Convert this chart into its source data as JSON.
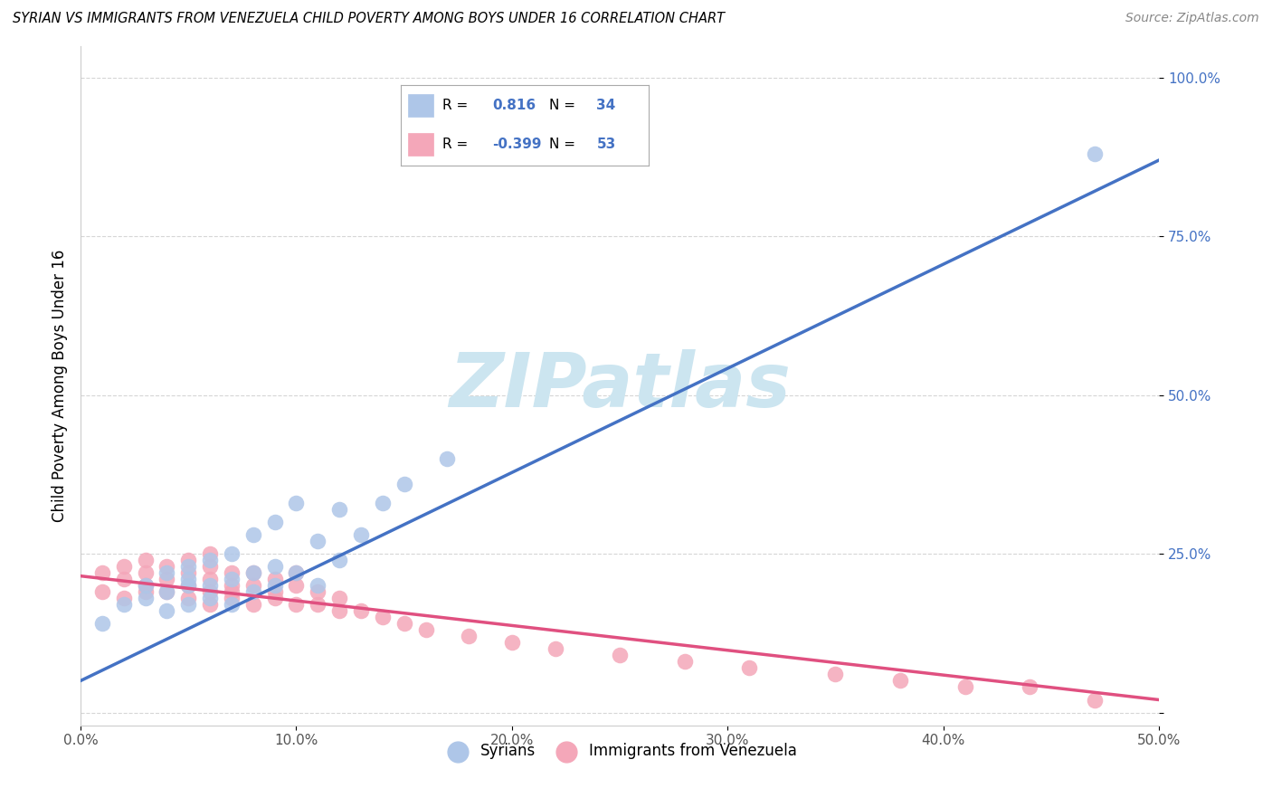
{
  "title": "SYRIAN VS IMMIGRANTS FROM VENEZUELA CHILD POVERTY AMONG BOYS UNDER 16 CORRELATION CHART",
  "source": "Source: ZipAtlas.com",
  "ylabel": "Child Poverty Among Boys Under 16",
  "xlim": [
    0.0,
    0.5
  ],
  "ylim": [
    -0.02,
    1.05
  ],
  "syrians_R": 0.816,
  "syrians_N": 34,
  "venezuela_R": -0.399,
  "venezuela_N": 53,
  "syrians_color": "#aec6e8",
  "venezuela_color": "#f4a7b9",
  "syrians_line_color": "#4472c4",
  "venezuela_line_color": "#e05080",
  "watermark": "ZIPatlas",
  "watermark_color": "#cce5f0",
  "background_color": "#ffffff",
  "grid_color": "#cccccc",
  "legend_label_1": "Syrians",
  "legend_label_2": "Immigrants from Venezuela",
  "syrians_x": [
    0.01,
    0.02,
    0.03,
    0.03,
    0.04,
    0.04,
    0.04,
    0.05,
    0.05,
    0.05,
    0.05,
    0.06,
    0.06,
    0.06,
    0.07,
    0.07,
    0.07,
    0.08,
    0.08,
    0.08,
    0.09,
    0.09,
    0.09,
    0.1,
    0.1,
    0.11,
    0.11,
    0.12,
    0.12,
    0.13,
    0.14,
    0.15,
    0.17,
    0.47
  ],
  "syrians_y": [
    0.14,
    0.17,
    0.18,
    0.2,
    0.16,
    0.19,
    0.22,
    0.17,
    0.2,
    0.21,
    0.23,
    0.18,
    0.2,
    0.24,
    0.17,
    0.21,
    0.25,
    0.19,
    0.22,
    0.28,
    0.2,
    0.23,
    0.3,
    0.22,
    0.33,
    0.2,
    0.27,
    0.24,
    0.32,
    0.28,
    0.33,
    0.36,
    0.4,
    0.88
  ],
  "venezuela_x": [
    0.01,
    0.01,
    0.02,
    0.02,
    0.02,
    0.03,
    0.03,
    0.03,
    0.03,
    0.04,
    0.04,
    0.04,
    0.05,
    0.05,
    0.05,
    0.05,
    0.06,
    0.06,
    0.06,
    0.06,
    0.06,
    0.07,
    0.07,
    0.07,
    0.07,
    0.08,
    0.08,
    0.08,
    0.09,
    0.09,
    0.09,
    0.1,
    0.1,
    0.1,
    0.11,
    0.11,
    0.12,
    0.12,
    0.13,
    0.14,
    0.15,
    0.16,
    0.18,
    0.2,
    0.22,
    0.25,
    0.28,
    0.31,
    0.35,
    0.38,
    0.41,
    0.44,
    0.47
  ],
  "venezuela_y": [
    0.22,
    0.19,
    0.18,
    0.21,
    0.23,
    0.19,
    0.22,
    0.2,
    0.24,
    0.19,
    0.21,
    0.23,
    0.18,
    0.2,
    0.22,
    0.24,
    0.17,
    0.19,
    0.21,
    0.23,
    0.25,
    0.18,
    0.2,
    0.22,
    0.19,
    0.17,
    0.2,
    0.22,
    0.18,
    0.21,
    0.19,
    0.17,
    0.2,
    0.22,
    0.17,
    0.19,
    0.16,
    0.18,
    0.16,
    0.15,
    0.14,
    0.13,
    0.12,
    0.11,
    0.1,
    0.09,
    0.08,
    0.07,
    0.06,
    0.05,
    0.04,
    0.04,
    0.02
  ],
  "syrians_line_x0": 0.0,
  "syrians_line_y0": 0.05,
  "syrians_line_x1": 0.5,
  "syrians_line_y1": 0.87,
  "venezuela_line_x0": 0.0,
  "venezuela_line_y0": 0.215,
  "venezuela_line_x1": 0.5,
  "venezuela_line_y1": 0.02
}
